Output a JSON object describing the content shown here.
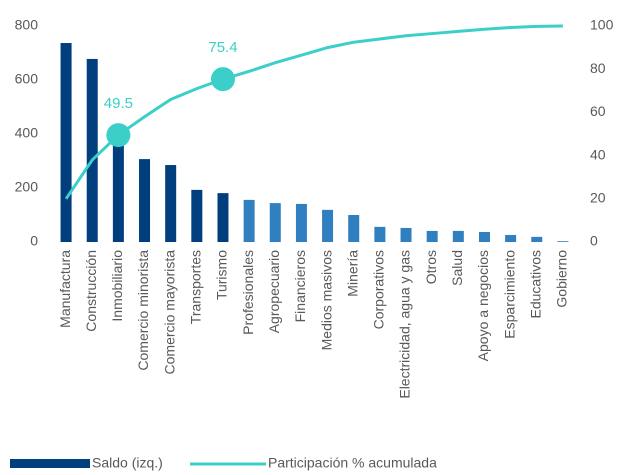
{
  "chart_data": {
    "type": "bar_line",
    "categories": [
      "Manufactura",
      "Construcción",
      "Inmobiliario",
      "Comercio minorista",
      "Comercio mayorista",
      "Transportes",
      "Turismo",
      "Profesionales",
      "Agropecuario",
      "Financieros",
      "Medios masivos",
      "Minería",
      "Corporativos",
      "Electricidad, agua y gas",
      "Otros",
      "Salud",
      "Apoyo a negocios",
      "Esparcimiento",
      "Educativos",
      "Gobierno"
    ],
    "series": [
      {
        "name": "Saldo (izq.)",
        "color": "#003e7e",
        "light_color": "#2f7fc1",
        "dark_count": 7,
        "values": [
          737,
          678,
          390,
          307,
          285,
          193,
          181,
          156,
          144,
          141,
          119,
          100,
          56,
          52,
          41,
          41,
          37,
          26,
          19,
          3
        ]
      },
      {
        "name": "Participación % acumulada",
        "color": "#3ccfc9",
        "axis": "y2",
        "values": [
          20,
          38,
          49.5,
          58,
          66,
          71,
          75.4,
          79,
          83,
          86.5,
          90,
          92.5,
          94,
          95.5,
          96.5,
          97.5,
          98.5,
          99.3,
          99.8,
          100
        ],
        "highlight_indices": [
          2,
          6
        ]
      }
    ],
    "ylim": [
      0,
      800
    ],
    "yticks": [
      0,
      200,
      400,
      600,
      800
    ],
    "y2lim": [
      0,
      100
    ],
    "y2ticks": [
      0,
      20,
      40,
      60,
      80,
      100
    ]
  }
}
